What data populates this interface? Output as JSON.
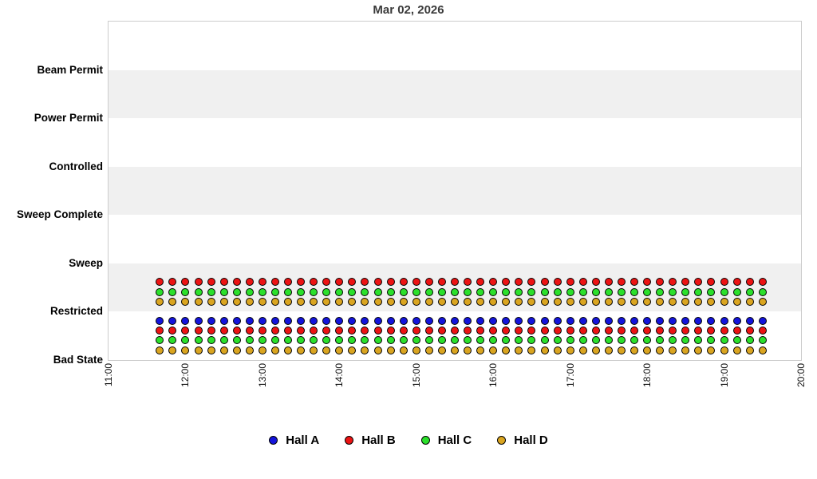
{
  "title": "Mar 02, 2026",
  "chart_data": {
    "type": "scatter",
    "title": "Mar 02, 2026",
    "x_axis": {
      "ticks": [
        "11:00",
        "12:00",
        "13:00",
        "14:00",
        "15:00",
        "16:00",
        "17:00",
        "18:00",
        "19:00",
        "20:00"
      ],
      "range_hours": [
        11,
        20
      ],
      "tick_rotation_deg": 90
    },
    "y_axis": {
      "categories_top_to_bottom": [
        "Beam Permit",
        "Power Permit",
        "Controlled",
        "Sweep Complete",
        "Sweep",
        "Restricted",
        "Bad State"
      ]
    },
    "halls": [
      {
        "name": "Hall A",
        "color": "#1414dc"
      },
      {
        "name": "Hall B",
        "color": "#ec1313"
      },
      {
        "name": "Hall C",
        "color": "#2be02b"
      },
      {
        "name": "Hall D",
        "color": "#daa520"
      }
    ],
    "sampling": {
      "start": "11:40",
      "end": "19:30",
      "interval_minutes": 10,
      "points_per_row": 48
    },
    "point_groups": [
      {
        "state": "Restricted",
        "halls": [
          "Hall B",
          "Hall C",
          "Hall D"
        ]
      },
      {
        "state": "Bad State",
        "halls": [
          "Hall A",
          "Hall B",
          "Hall C",
          "Hall D"
        ]
      }
    ],
    "legend": {
      "position": "bottom",
      "entries": [
        "Hall A",
        "Hall B",
        "Hall C",
        "Hall D"
      ]
    },
    "plot_background": {
      "band_colors": [
        "#ffffff",
        "#f0f0f0"
      ],
      "border_color": "#cccccc"
    }
  }
}
